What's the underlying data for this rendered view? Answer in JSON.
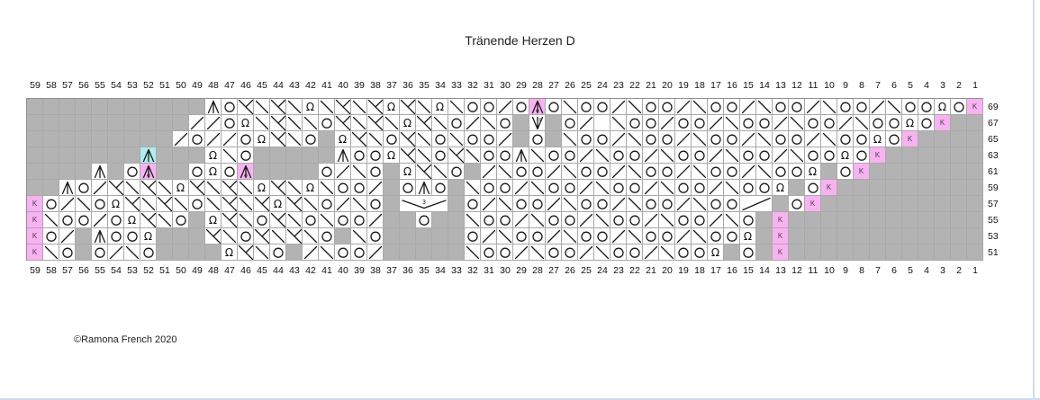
{
  "title": "Tränende Herzen D",
  "copyright": "©Ramona French 2020",
  "colors": {
    "no_stitch": "#b3b3b3",
    "highlight_pink": "#f8b2f2",
    "highlight_cyan": "#aeeef0",
    "grid_line": "#a9a9a9",
    "symbol": "#1a1a1a"
  },
  "symbols": {
    "": "knit",
    "g": "no-stitch",
    "o": "yarn-over",
    "/": "k2tog",
    "\\": "ssk",
    "L": "double-decrease-left",
    "A": "centered-double-decrease",
    "Ac": "centered-double-decrease-cyan",
    "Ap": "centered-double-decrease-pink",
    "V": "centered-double-increase",
    "V3": "gather-3",
    "/2": "double-width-k2tog",
    "w": "twisted-stitch-omega",
    "K": "pink-k-marker"
  },
  "chart_data": {
    "type": "heatmap",
    "note": "Knitting lace chart, columns numbered right-to-left 1-59, odd-numbered rows 51-69 bottom-to-top",
    "columns": [
      59,
      58,
      57,
      56,
      55,
      54,
      53,
      52,
      51,
      50,
      49,
      48,
      47,
      46,
      45,
      44,
      43,
      42,
      41,
      40,
      39,
      38,
      37,
      36,
      35,
      34,
      33,
      32,
      31,
      30,
      29,
      28,
      27,
      26,
      25,
      24,
      23,
      22,
      21,
      20,
      19,
      18,
      17,
      16,
      15,
      14,
      13,
      12,
      11,
      10,
      9,
      8,
      7,
      6,
      5,
      4,
      3,
      2,
      1
    ],
    "row_labels": [
      69,
      67,
      65,
      63,
      61,
      59,
      57,
      55,
      53,
      51
    ],
    "rows": [
      {
        "label": "69",
        "cells": [
          "g",
          "g",
          "g",
          "g",
          "g",
          "g",
          "g",
          "g",
          "g",
          "g",
          "g",
          "A",
          "o",
          "L",
          "\\",
          "L",
          "\\",
          "w",
          "\\",
          "L",
          "\\",
          "L",
          "w",
          "L",
          "\\",
          "w",
          "\\",
          "o",
          "o",
          "/",
          "o",
          "Ap",
          "o",
          "\\",
          "o",
          "o",
          "/",
          "\\",
          "o",
          "o",
          "/",
          "\\",
          "o",
          "o",
          "/",
          "\\",
          "o",
          "o",
          "/",
          "\\",
          "o",
          "o",
          "/",
          "\\",
          "o",
          "o",
          "w",
          "o",
          "K"
        ]
      },
      {
        "label": "67",
        "cells": [
          "g",
          "g",
          "g",
          "g",
          "g",
          "g",
          "g",
          "g",
          "g",
          "g",
          "/",
          "/",
          "o",
          "w",
          "\\",
          "L",
          "\\",
          "\\",
          "o",
          "L",
          "\\",
          "L",
          "\\",
          "w",
          "L",
          "\\",
          "o",
          "/",
          "\\",
          "o",
          "g",
          "V",
          "g",
          "o",
          "/",
          "",
          "\\",
          "o",
          "o",
          "/",
          "o",
          "o",
          "/",
          "\\",
          "o",
          "o",
          "/",
          "\\",
          "o",
          "o",
          "/",
          "\\",
          "o",
          "o",
          "w",
          "o",
          "K",
          "g",
          "g"
        ]
      },
      {
        "label": "65",
        "cells": [
          "g",
          "g",
          "g",
          "g",
          "g",
          "g",
          "g",
          "g",
          "g",
          "/",
          "o",
          "/",
          "/",
          "o",
          "w",
          "L",
          "\\",
          "o",
          "g",
          "w",
          "L",
          "\\",
          "o",
          "L",
          "\\",
          "o",
          "\\",
          "o",
          "o",
          "/",
          "g",
          "o",
          "g",
          "\\",
          "o",
          "o",
          "/",
          "\\",
          "o",
          "o",
          "/",
          "\\",
          "o",
          "o",
          "/",
          "\\",
          "o",
          "o",
          "/",
          "\\",
          "o",
          "o",
          "w",
          "o",
          "K",
          "g",
          "g",
          "g",
          "g"
        ]
      },
      {
        "label": "63",
        "cells": [
          "g",
          "g",
          "g",
          "g",
          "g",
          "g",
          "g",
          "Ac",
          "g",
          "g",
          "g",
          "w",
          "\\",
          "o",
          "g",
          "g",
          "g",
          "g",
          "g",
          "A",
          "o",
          "o",
          "w",
          "L",
          "\\",
          "o",
          "L",
          "\\",
          "o",
          "o",
          "A",
          "\\",
          "o",
          "o",
          "/",
          "\\",
          "o",
          "o",
          "/",
          "\\",
          "o",
          "o",
          "/",
          "\\",
          "o",
          "o",
          "/",
          "\\",
          "o",
          "o",
          "w",
          "o",
          "K",
          "g",
          "g",
          "g",
          "g",
          "g",
          "g"
        ]
      },
      {
        "label": "61",
        "cells": [
          "g",
          "g",
          "g",
          "g",
          "A",
          "g",
          "o",
          "Ap",
          "g",
          "g",
          "o",
          "w",
          "o",
          "Ap",
          "g",
          "g",
          "g",
          "g",
          "o",
          "/",
          "\\",
          "o",
          "g",
          "w",
          "L",
          "\\",
          "o",
          "g",
          "/",
          "\\",
          "o",
          "o",
          "/",
          "\\",
          "o",
          "o",
          "/",
          "\\",
          "o",
          "o",
          "/",
          "\\",
          "o",
          "o",
          "/",
          "\\",
          "o",
          "o",
          "w",
          "g",
          "o",
          "K",
          "g",
          "g",
          "g",
          "g",
          "g",
          "g",
          "g"
        ]
      },
      {
        "label": "59",
        "cells": [
          "g",
          "g",
          "A",
          "o",
          "/",
          "L",
          "\\",
          "L",
          "\\",
          "w",
          "L",
          "\\",
          "L",
          "\\",
          "w",
          "L",
          "\\",
          "w",
          "\\",
          "o",
          "o",
          "/",
          "g",
          "o",
          "A",
          "o",
          "g",
          "\\",
          "o",
          "o",
          "/",
          "\\",
          "o",
          "o",
          "/",
          "\\",
          "o",
          "o",
          "/",
          "\\",
          "o",
          "o",
          "/",
          "\\",
          "o",
          "o",
          "w",
          "g",
          "o",
          "K",
          "g",
          "g",
          "g",
          "g",
          "g",
          "g",
          "g",
          "g",
          "g"
        ]
      },
      {
        "label": "57",
        "cells": [
          "K",
          "o",
          "/",
          "\\",
          "o",
          "w",
          "L",
          "\\",
          "L",
          "\\",
          "o",
          "\\",
          "L",
          "\\",
          "L",
          "w",
          "L",
          "\\",
          "o",
          "/",
          "\\",
          "o",
          "g",
          "V3",
          "-",
          "-",
          "g",
          "o",
          "/",
          "\\",
          "o",
          "o",
          "/",
          "\\",
          "o",
          "o",
          "/",
          "\\",
          "o",
          "o",
          "/",
          "\\",
          "o",
          "o",
          "/2",
          "-",
          "g",
          "o",
          "K",
          "g",
          "g",
          "g",
          "g",
          "g",
          "g",
          "g",
          "g",
          "g",
          "g"
        ]
      },
      {
        "label": "55",
        "cells": [
          "K",
          "\\",
          "o",
          "o",
          "/",
          "o",
          "w",
          "L",
          "\\",
          "o",
          "g",
          "w",
          "L",
          "\\",
          "o",
          "L",
          "\\",
          "o",
          "\\",
          "o",
          "o",
          "/",
          "g",
          "g",
          "o",
          "g",
          "g",
          "\\",
          "o",
          "o",
          "/",
          "\\",
          "o",
          "o",
          "/",
          "\\",
          "o",
          "o",
          "/",
          "\\",
          "o",
          "o",
          "/",
          "\\",
          "o",
          "g",
          "K",
          "g",
          "g",
          "g",
          "g",
          "g",
          "g",
          "g",
          "g",
          "g",
          "g",
          "g",
          "g"
        ]
      },
      {
        "label": "53",
        "cells": [
          "K",
          "o",
          "/",
          "g",
          "A",
          "o",
          "o",
          "w",
          "g",
          "g",
          "g",
          "L",
          "\\",
          "o",
          "L",
          "\\",
          "L",
          "\\",
          "o",
          "g",
          "\\",
          "o",
          "g",
          "g",
          "g",
          "g",
          "g",
          "o",
          "/",
          "\\",
          "o",
          "o",
          "/",
          "\\",
          "o",
          "o",
          "/",
          "\\",
          "o",
          "o",
          "/",
          "\\",
          "o",
          "o",
          "w",
          "g",
          "K",
          "g",
          "g",
          "g",
          "g",
          "g",
          "g",
          "g",
          "g",
          "g",
          "g",
          "g",
          "g"
        ]
      },
      {
        "label": "51",
        "cells": [
          "K",
          "\\",
          "o",
          "g",
          "o",
          "/",
          "\\",
          "o",
          "g",
          "g",
          "g",
          "g",
          "w",
          "L",
          "\\",
          "o",
          "g",
          "/",
          "\\",
          "o",
          "o",
          "/",
          "g",
          "g",
          "g",
          "g",
          "g",
          "\\",
          "o",
          "o",
          "/",
          "\\",
          "o",
          "o",
          "/",
          "\\",
          "o",
          "o",
          "/",
          "\\",
          "o",
          "o",
          "w",
          "g",
          "o",
          "g",
          "K",
          "g",
          "g",
          "g",
          "g",
          "g",
          "g",
          "g",
          "g",
          "g",
          "g",
          "g",
          "g"
        ]
      }
    ]
  }
}
